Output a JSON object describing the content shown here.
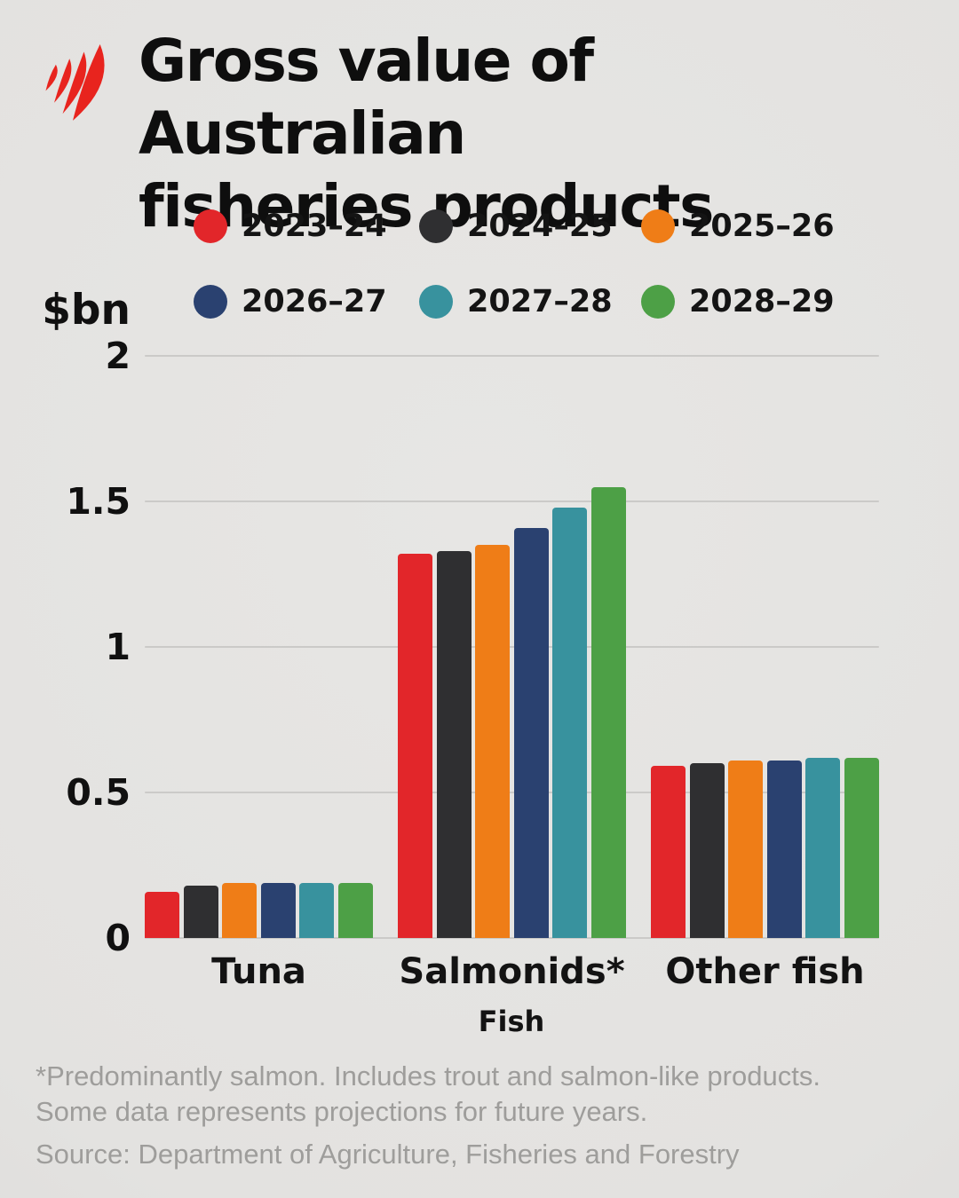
{
  "brand": {
    "logo_icon": "sbs-logo",
    "logo_color": "#e8241e"
  },
  "title": {
    "line1": "Gross value of Australian",
    "line2": "fisheries products"
  },
  "footnote": {
    "line1": "*Predominantly salmon. Includes trout and salmon-like products.",
    "line2": "Some data represents projections for future years.",
    "source": "Source: Department of Agriculture, Fisheries and Forestry"
  },
  "chart_data": {
    "type": "bar",
    "title": "Gross value of Australian fisheries products",
    "categories": [
      "Tuna",
      "Salmonids*",
      "Other fish"
    ],
    "series": [
      {
        "name": "2023–24",
        "color": "#e2262a",
        "values": [
          0.16,
          1.32,
          0.59
        ]
      },
      {
        "name": "2024–25",
        "color": "#2f2f31",
        "values": [
          0.18,
          1.33,
          0.6
        ]
      },
      {
        "name": "2025–26",
        "color": "#ef7d17",
        "values": [
          0.19,
          1.35,
          0.61
        ]
      },
      {
        "name": "2026–27",
        "color": "#2a4170",
        "values": [
          0.19,
          1.41,
          0.61
        ]
      },
      {
        "name": "2027–28",
        "color": "#38929e",
        "values": [
          0.19,
          1.48,
          0.62
        ]
      },
      {
        "name": "2028–29",
        "color": "#4da046",
        "values": [
          0.19,
          1.55,
          0.62
        ]
      }
    ],
    "xlabel": "Fish",
    "ylabel": "$bn",
    "ylim": [
      0,
      2
    ],
    "yticks": [
      0,
      0.5,
      1,
      1.5,
      2
    ],
    "grid": true,
    "gridline_color": "#cbcac8",
    "legend_position": "top"
  }
}
